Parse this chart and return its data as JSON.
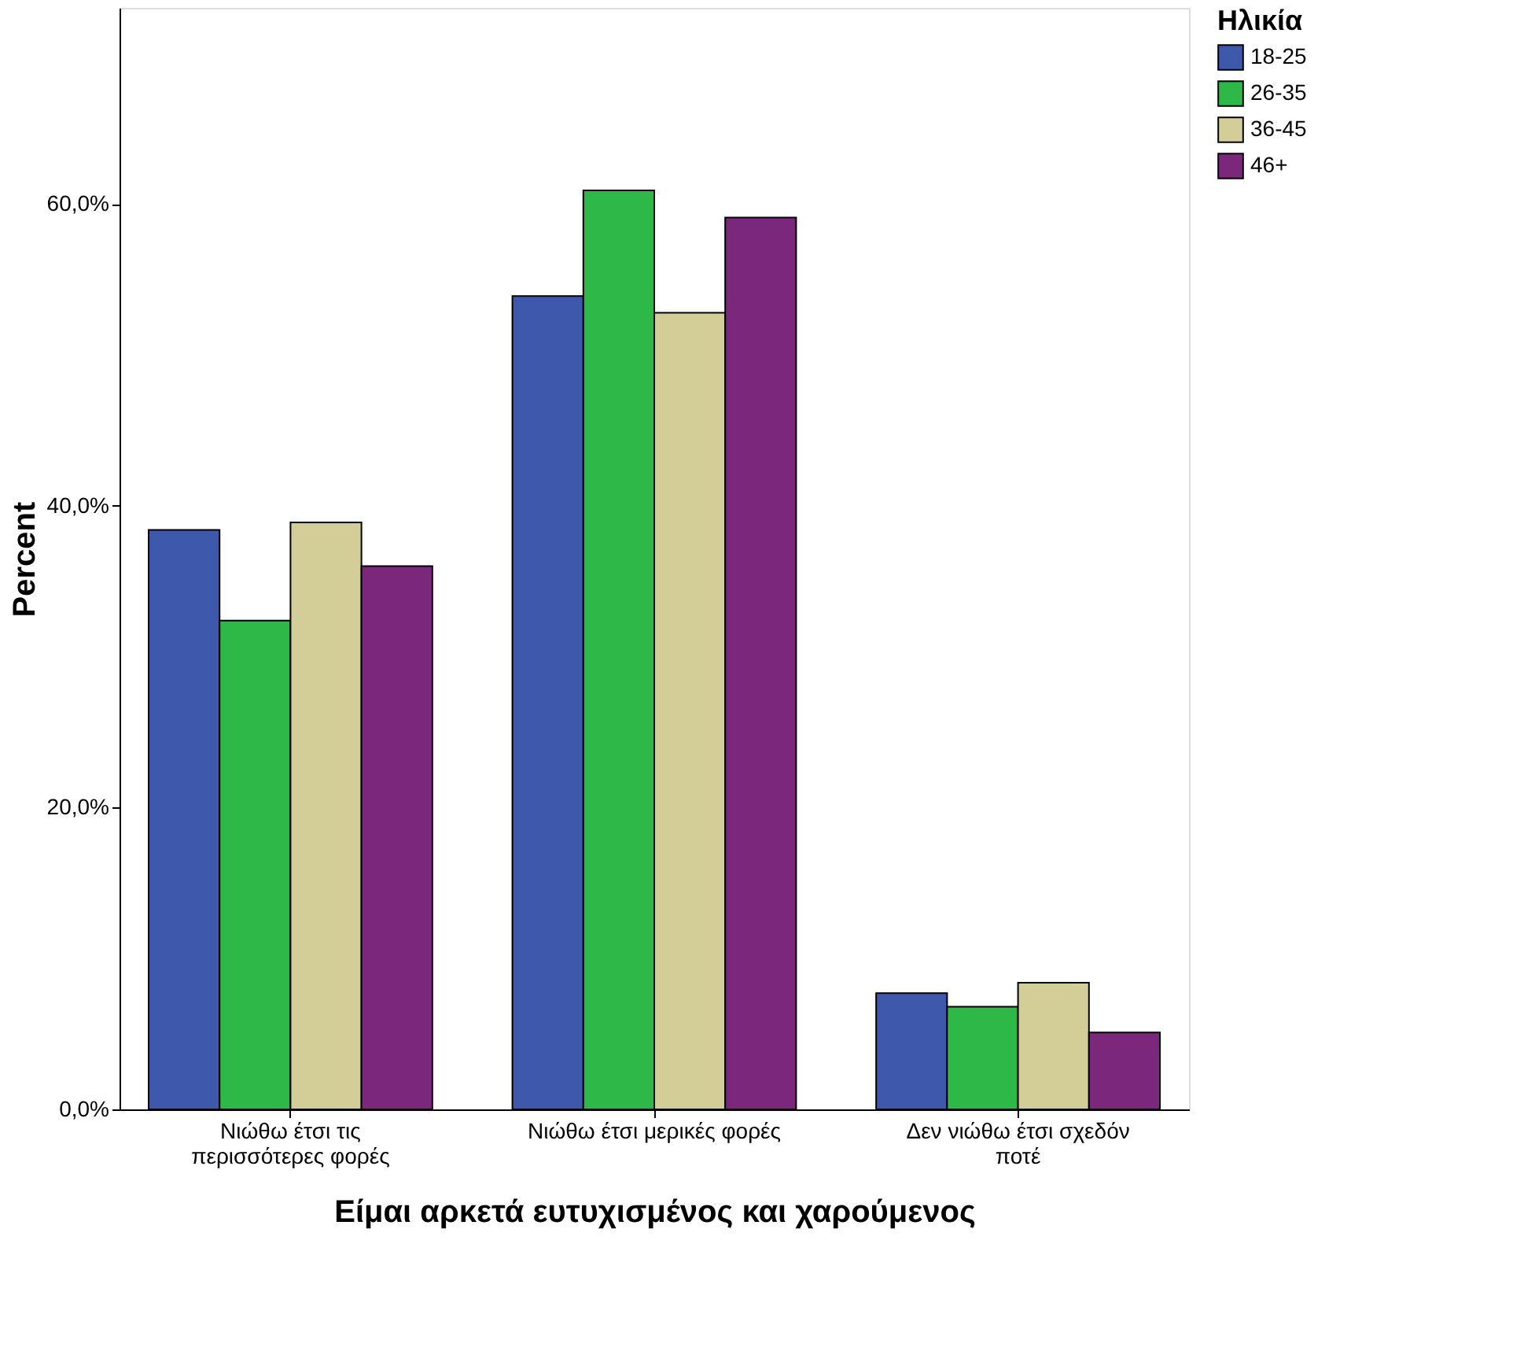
{
  "chart_data": {
    "type": "bar",
    "xlabel": "Είμαι αρκετά ευτυχισμένος και χαρούμενος",
    "ylabel": "Percent",
    "legend_title": "Ηλικία",
    "categories": [
      "Νιώθω έτσι τις περισσότερες φορές",
      "Νιώθω έτσι μερικές φορές",
      "Δεν νιώθω έτσι σχεδόν ποτέ"
    ],
    "series": [
      {
        "name": "18-25",
        "color": "#3e58ac",
        "values": [
          38.4,
          53.9,
          7.7
        ]
      },
      {
        "name": "26-35",
        "color": "#2eb848",
        "values": [
          32.4,
          60.9,
          6.8
        ]
      },
      {
        "name": "36-45",
        "color": "#d3ce97",
        "values": [
          38.9,
          52.8,
          8.4
        ]
      },
      {
        "name": "46+",
        "color": "#7b287c",
        "values": [
          36.0,
          59.1,
          5.1
        ]
      }
    ],
    "ylim": [
      0,
      73
    ],
    "yticks": [
      {
        "value": 0,
        "label": "0,0%"
      },
      {
        "value": 20,
        "label": "20,0%"
      },
      {
        "value": 40,
        "label": "40,0%"
      },
      {
        "value": 60,
        "label": "60,0%"
      }
    ],
    "grid": false,
    "legend": "top right"
  }
}
